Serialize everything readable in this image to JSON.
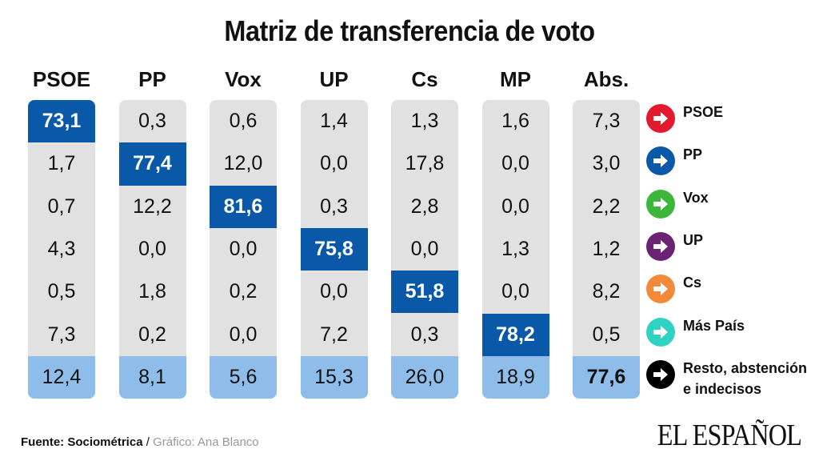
{
  "chart_data": {
    "type": "table",
    "title": "Matriz de transferencia de voto",
    "columns": [
      "PSOE",
      "PP",
      "Vox",
      "UP",
      "Cs",
      "MP",
      "Abs."
    ],
    "rows": [
      {
        "name": "PSOE",
        "color": "#e3192e",
        "values": [
          "73,1",
          "0,3",
          "0,6",
          "1,4",
          "1,3",
          "1,6",
          "7,3"
        ]
      },
      {
        "name": "PP",
        "color": "#0a58a8",
        "values": [
          "1,7",
          "77,4",
          "12,0",
          "0,0",
          "17,8",
          "0,0",
          "3,0"
        ]
      },
      {
        "name": "Vox",
        "color": "#3cb73c",
        "values": [
          "0,7",
          "12,2",
          "81,6",
          "0,3",
          "2,8",
          "0,0",
          "2,2"
        ]
      },
      {
        "name": "UP",
        "color": "#6b2272",
        "values": [
          "4,3",
          "0,0",
          "0,0",
          "75,8",
          "0,0",
          "1,3",
          "1,2"
        ]
      },
      {
        "name": "Cs",
        "color": "#f28a3a",
        "values": [
          "0,5",
          "1,8",
          "0,2",
          "0,0",
          "51,8",
          "0,0",
          "8,2"
        ]
      },
      {
        "name": "Más País",
        "color": "#2fd3c4",
        "values": [
          "7,3",
          "0,2",
          "0,0",
          "7,2",
          "0,3",
          "78,2",
          "0,5"
        ]
      },
      {
        "name": "Resto, abstención e indecisos",
        "color": "#000000",
        "values": [
          "12,4",
          "8,1",
          "5,6",
          "15,3",
          "26,0",
          "18,9",
          "77,6"
        ]
      }
    ],
    "colors": {
      "highlight": "#0a58a8",
      "cell": "#e1e1e1",
      "last_row": "#8ebde9"
    }
  },
  "footer": {
    "source_label": "Fuente: Sociométrica",
    "separator": " / ",
    "credit": "Gráfico: Ana Blanco"
  },
  "logo": "EL ESPAÑOL"
}
